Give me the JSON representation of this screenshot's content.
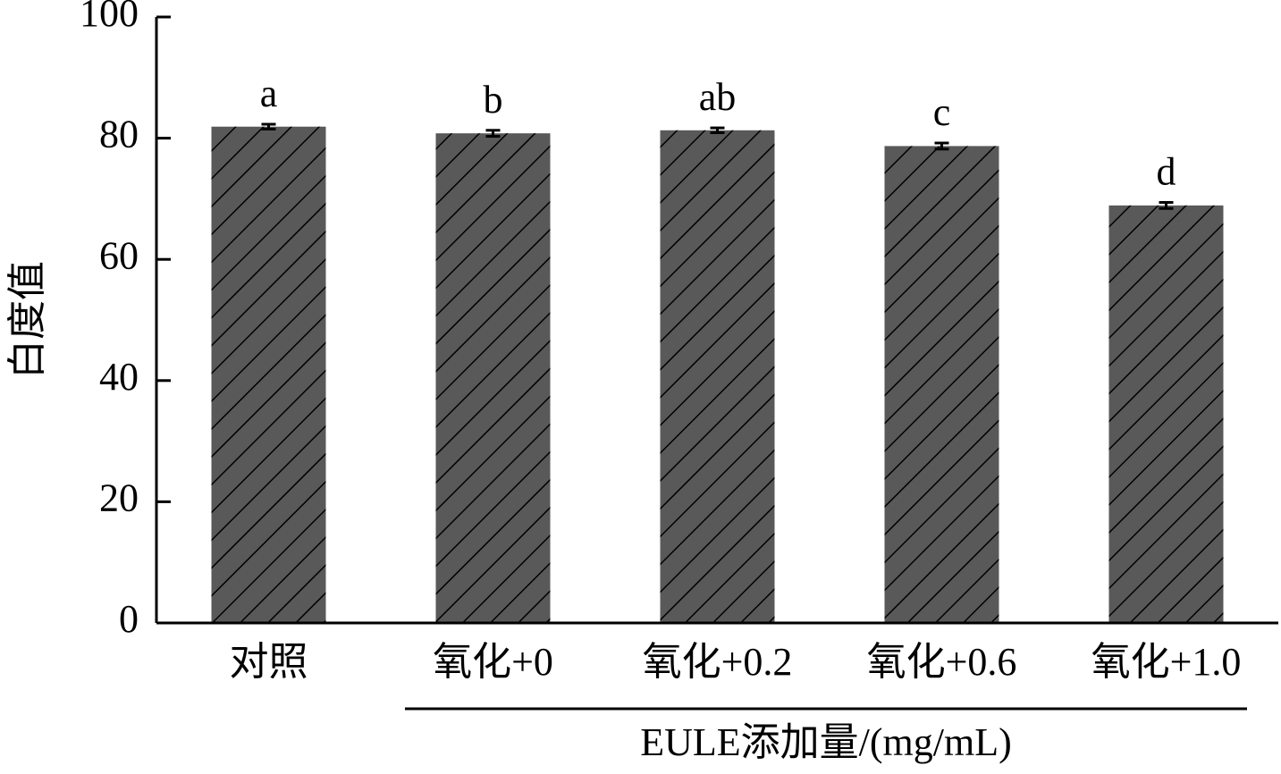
{
  "chart_data": {
    "type": "bar",
    "y_label": "白度值",
    "x_label": "EULE添加量/(mg/mL)",
    "categories": [
      "对照",
      "氧化+0",
      "氧化+0.2",
      "氧化+0.6",
      "氧化+1.0"
    ],
    "values": [
      81.9,
      80.8,
      81.3,
      78.7,
      68.9
    ],
    "errors": [
      0.4,
      0.5,
      0.4,
      0.5,
      0.5
    ],
    "annotations": [
      "a",
      "b",
      "ab",
      "c",
      "d"
    ],
    "color": "#595959",
    "ylim": [
      0,
      100
    ],
    "yticks": [
      0,
      20,
      40,
      60,
      80,
      100
    ]
  }
}
